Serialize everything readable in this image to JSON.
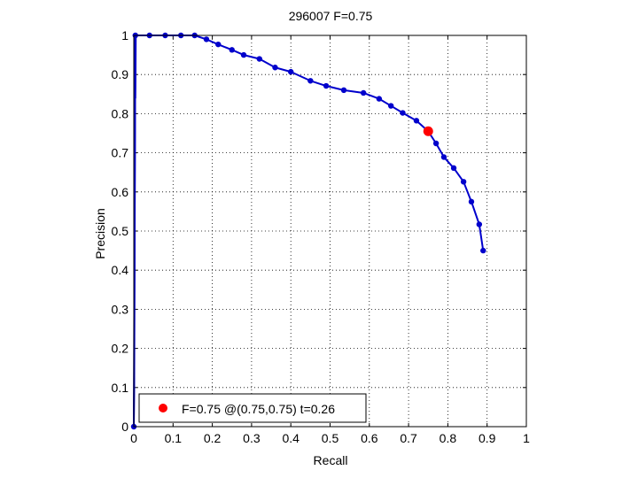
{
  "chart_data": {
    "type": "line",
    "title": "296007 F=0.75",
    "xlabel": "Recall",
    "ylabel": "Precision",
    "xlim": [
      0,
      1
    ],
    "ylim": [
      0,
      1
    ],
    "xticks": [
      0,
      0.1,
      0.2,
      0.3,
      0.4,
      0.5,
      0.6,
      0.7,
      0.8,
      0.9,
      1
    ],
    "xtick_labels": [
      "0",
      "0.1",
      "0.2",
      "0.3",
      "0.4",
      "0.5",
      "0.6",
      "0.7",
      "0.8",
      "0.9",
      "1"
    ],
    "yticks": [
      0,
      0.1,
      0.2,
      0.3,
      0.4,
      0.5,
      0.6,
      0.7,
      0.8,
      0.9,
      1
    ],
    "ytick_labels": [
      "0",
      "0.1",
      "0.2",
      "0.3",
      "0.4",
      "0.5",
      "0.6",
      "0.7",
      "0.8",
      "0.9",
      "1"
    ],
    "grid": true,
    "legend_position": "bottom-left",
    "series": [
      {
        "name": "",
        "color": "#0000cc",
        "curve": [
          [
            0.0,
            0.0
          ],
          [
            0.001,
            0.1
          ],
          [
            0.002,
            0.4
          ],
          [
            0.003,
            0.75
          ],
          [
            0.003,
            1.0
          ],
          [
            0.004,
            0.84
          ],
          [
            0.005,
            1.0
          ]
        ],
        "points": [
          [
            0.0,
            0.0
          ],
          [
            0.004,
            1.0
          ],
          [
            0.04,
            1.0
          ],
          [
            0.08,
            1.0
          ],
          [
            0.12,
            1.0
          ],
          [
            0.155,
            1.0
          ],
          [
            0.185,
            0.99
          ],
          [
            0.215,
            0.977
          ],
          [
            0.25,
            0.963
          ],
          [
            0.28,
            0.95
          ],
          [
            0.32,
            0.94
          ],
          [
            0.36,
            0.918
          ],
          [
            0.4,
            0.907
          ],
          [
            0.45,
            0.884
          ],
          [
            0.49,
            0.871
          ],
          [
            0.535,
            0.86
          ],
          [
            0.585,
            0.853
          ],
          [
            0.625,
            0.838
          ],
          [
            0.655,
            0.82
          ],
          [
            0.685,
            0.802
          ],
          [
            0.72,
            0.782
          ],
          [
            0.75,
            0.755
          ],
          [
            0.77,
            0.724
          ],
          [
            0.79,
            0.689
          ],
          [
            0.815,
            0.661
          ],
          [
            0.84,
            0.626
          ],
          [
            0.86,
            0.575
          ],
          [
            0.88,
            0.517
          ],
          [
            0.89,
            0.45
          ]
        ]
      }
    ],
    "best_point": {
      "x": 0.75,
      "y": 0.755,
      "color": "#ff0000"
    },
    "legend": [
      {
        "label": "F=0.75 @(0.75,0.75) t=0.26",
        "color": "#ff0000"
      }
    ]
  }
}
